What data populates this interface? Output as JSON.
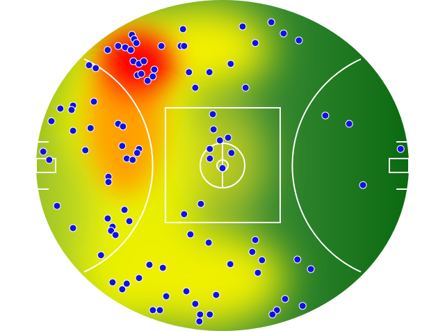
{
  "chart_data": {
    "type": "scatter",
    "color": "#1010e8",
    "xlim": [
      0,
      100
    ],
    "ylim": [
      0,
      100
    ],
    "x": [
      39.4,
      55.4,
      63.1,
      66.4,
      70.5,
      58.8,
      25.7,
      26.3,
      22.0,
      23.9,
      19.2,
      26.9,
      25.4,
      33.6,
      38.8,
      39.7,
      26.1,
      27.6,
      28.9,
      14.2,
      16.0,
      31.7,
      27.2,
      28.2,
      29.9,
      31.3,
      41.0,
      46.5,
      52.2,
      42.7,
      56.2,
      15.5,
      9.9,
      9.5,
      6.5,
      4.1,
      9.9,
      14.6,
      22.0,
      23.3,
      47.4,
      47.6,
      49.3,
      51.5,
      46.6,
      52.4,
      46.6,
      50.0,
      23.1,
      27.6,
      27.1,
      24.3,
      25.9,
      13.2,
      1.9,
      3.5,
      77.6,
      84.0,
      97.8,
      87.7,
      19.4,
      19.4,
      5.6,
      23.7,
      39.7,
      44.2,
      19.2,
      25.0,
      20.5,
      20.1,
      21.3,
      9.9,
      41.4,
      46.3,
      58.8,
      58.0,
      60.6,
      52.1,
      59.5,
      70.1,
      73.7,
      17.4,
      30.4,
      34.0,
      20.5,
      24.3,
      23.1,
      27.6,
      34.9,
      40.3,
      48.3,
      42.7,
      31.3,
      33.2,
      44.0,
      43.8,
      46.6,
      66.8,
      64.6,
      63.4,
      71.5
    ],
    "values": [
      91.2,
      92.0,
      93.3,
      89.9,
      87.8,
      87.0,
      89.5,
      88.2,
      86.1,
      85.7,
      84.9,
      87.0,
      84.9,
      86.1,
      86.1,
      86.1,
      81.5,
      80.7,
      81.5,
      80.3,
      79.4,
      79.0,
      77.3,
      77.7,
      75.6,
      76.9,
      78.2,
      78.2,
      80.7,
      73.5,
      73.5,
      69.3,
      68.1,
      66.8,
      67.2,
      63.4,
      60.5,
      61.3,
      62.6,
      61.8,
      65.5,
      60.9,
      57.6,
      58.4,
      55.0,
      53.8,
      52.1,
      49.2,
      55.9,
      55.0,
      53.8,
      52.1,
      51.7,
      54.6,
      54.2,
      51.7,
      65.1,
      62.6,
      55.0,
      44.1,
      46.6,
      45.0,
      37.8,
      36.6,
      35.3,
      38.4,
      34.0,
      33.2,
      31.5,
      30.3,
      29.0,
      31.1,
      29.2,
      26.7,
      27.5,
      23.9,
      21.4,
      20.2,
      17.6,
      21.6,
      18.7,
      22.9,
      20.0,
      19.1,
      14.7,
      14.3,
      12.6,
      16.0,
      10.5,
      12.0,
      10.9,
      8.2,
      6.3,
      6.3,
      5.0,
      2.9,
      5.0,
      9.7,
      6.3,
      5.0,
      7.6
    ]
  }
}
